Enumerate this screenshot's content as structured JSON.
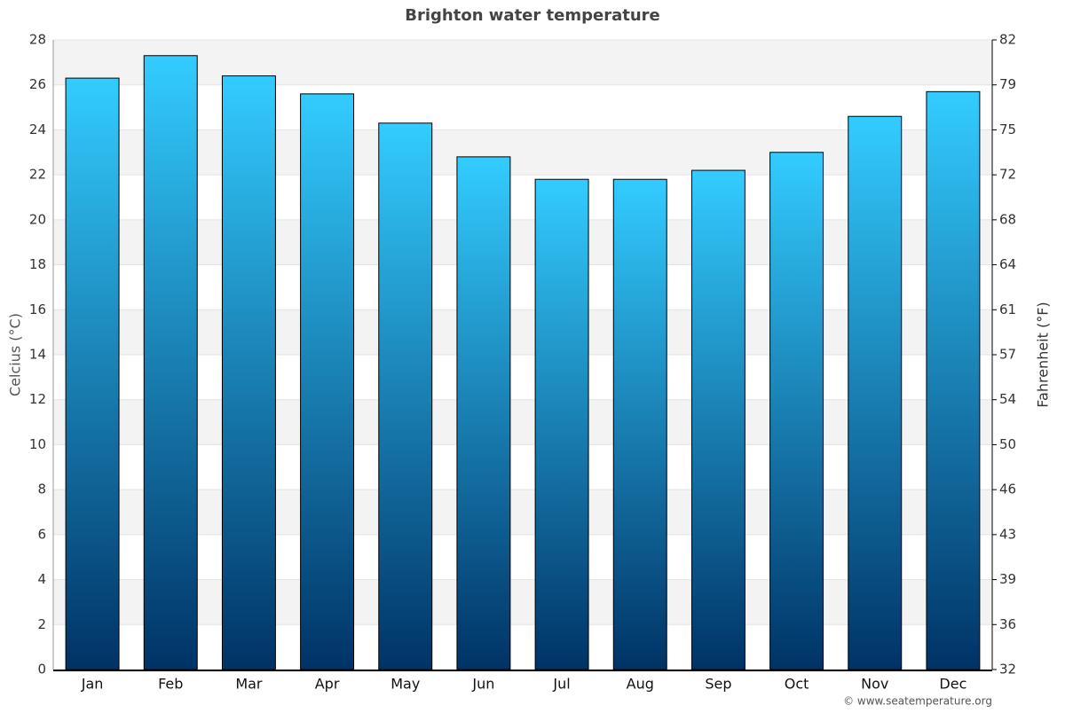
{
  "chart_data": {
    "type": "bar",
    "title": "Brighton water temperature",
    "y_label": "Celcius (°C)",
    "y2_label": "Fahrenheit (°F)",
    "source": "© www.seatemperature.org",
    "categories": [
      "Jan",
      "Feb",
      "Mar",
      "Apr",
      "May",
      "Jun",
      "Jul",
      "Aug",
      "Sep",
      "Oct",
      "Nov",
      "Dec"
    ],
    "values": [
      26.3,
      27.3,
      26.4,
      25.6,
      24.3,
      22.8,
      21.8,
      21.8,
      22.2,
      23.0,
      24.6,
      25.7
    ],
    "color_top": "#33ccff",
    "color_bottom": "#003366",
    "ylim": [
      0,
      28
    ],
    "yticks": [
      0,
      2,
      4,
      6,
      8,
      10,
      12,
      14,
      16,
      18,
      20,
      22,
      24,
      26,
      28
    ],
    "y2lim": [
      32,
      82.4
    ],
    "y2ticks": [
      32,
      {
        "value": 35.6,
        "label": "36"
      },
      {
        "value": 39.2,
        "label": "39"
      },
      {
        "value": 42.8,
        "label": "43"
      },
      {
        "value": 46.4,
        "label": "46"
      },
      50,
      {
        "value": 53.6,
        "label": "54"
      },
      {
        "value": 57.2,
        "label": "57"
      },
      {
        "value": 60.8,
        "label": "61"
      },
      {
        "value": 64.4,
        "label": "64"
      },
      68,
      {
        "value": 71.6,
        "label": "72"
      },
      {
        "value": 75.2,
        "label": "75"
      },
      {
        "value": 78.8,
        "label": "79"
      },
      {
        "value": 82.4,
        "label": "82"
      }
    ],
    "grid": true
  }
}
